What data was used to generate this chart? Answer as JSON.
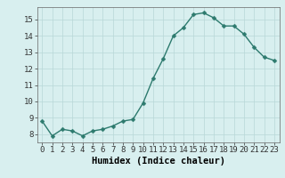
{
  "x": [
    0,
    1,
    2,
    3,
    4,
    5,
    6,
    7,
    8,
    9,
    10,
    11,
    12,
    13,
    14,
    15,
    16,
    17,
    18,
    19,
    20,
    21,
    22,
    23
  ],
  "y": [
    8.8,
    7.9,
    8.3,
    8.2,
    7.9,
    8.2,
    8.3,
    8.5,
    8.8,
    8.9,
    9.9,
    11.4,
    12.6,
    14.0,
    14.5,
    15.3,
    15.4,
    15.1,
    14.6,
    14.6,
    14.1,
    13.3,
    12.7,
    12.5
  ],
  "xlabel": "Humidex (Indice chaleur)",
  "ylim": [
    7.5,
    15.75
  ],
  "xlim": [
    -0.5,
    23.5
  ],
  "yticks": [
    8,
    9,
    10,
    11,
    12,
    13,
    14,
    15
  ],
  "xticks": [
    0,
    1,
    2,
    3,
    4,
    5,
    6,
    7,
    8,
    9,
    10,
    11,
    12,
    13,
    14,
    15,
    16,
    17,
    18,
    19,
    20,
    21,
    22,
    23
  ],
  "line_color": "#2d7a6e",
  "marker": "D",
  "marker_size": 2.5,
  "bg_color": "#d8efef",
  "grid_color": "#b8d8d8",
  "tick_label_fontsize": 6.5,
  "xlabel_fontsize": 7.5,
  "linewidth": 1.0
}
